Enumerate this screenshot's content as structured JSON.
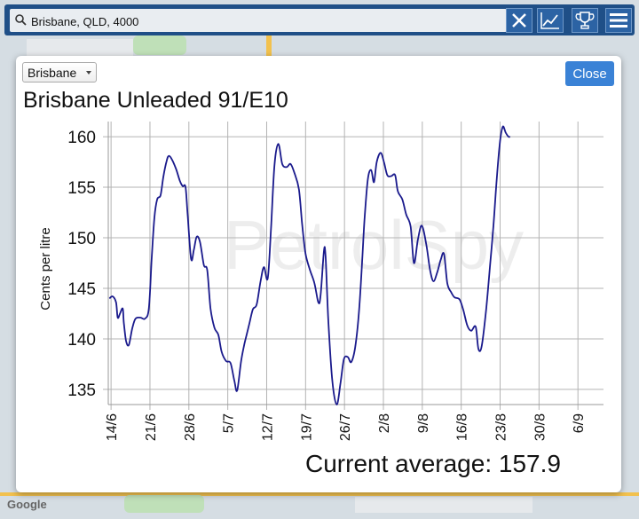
{
  "search": {
    "value": "Brisbane, QLD, 4000"
  },
  "map": {
    "credit": "Google"
  },
  "dialog": {
    "region_selected": "Brisbane",
    "close_label": "Close",
    "title": "Brisbane Unleaded 91/E10",
    "current_average_text": "Current average: 157.9",
    "watermark": "PetrolSpy"
  },
  "colors": {
    "line": "#1a1a8c",
    "topbar": "#1f4f87",
    "close_button": "#3a82d6"
  },
  "chart_data": {
    "type": "line",
    "ylabel": "Cents per litre",
    "ylim": [
      133.5,
      161.5
    ],
    "yticks": [
      135,
      140,
      145,
      150,
      155,
      160
    ],
    "xtick_labels": [
      "14/6",
      "21/6",
      "28/6",
      "5/7",
      "12/7",
      "19/7",
      "26/7",
      "2/8",
      "9/8",
      "16/8",
      "23/8",
      "30/8",
      "6/9"
    ],
    "xtick_day_index": [
      0,
      7,
      14,
      21,
      28,
      35,
      42,
      49,
      56,
      63,
      70,
      77,
      84
    ],
    "x_range_days": [
      -0.5,
      88.6
    ],
    "grid": true,
    "series": [
      {
        "points": [
          [
            -0.3,
            144.0
          ],
          [
            0.3,
            144.2
          ],
          [
            0.9,
            143.6
          ],
          [
            1.2,
            142.1
          ],
          [
            1.6,
            142.5
          ],
          [
            2.1,
            143.0
          ],
          [
            2.3,
            141.6
          ],
          [
            2.7,
            139.8
          ],
          [
            3.2,
            139.4
          ],
          [
            3.8,
            141.0
          ],
          [
            4.4,
            142.0
          ],
          [
            5.3,
            142.1
          ],
          [
            6.1,
            142.0
          ],
          [
            6.8,
            143.0
          ],
          [
            7.3,
            147.8
          ],
          [
            7.8,
            152.0
          ],
          [
            8.3,
            153.8
          ],
          [
            8.9,
            154.2
          ],
          [
            9.4,
            156.0
          ],
          [
            10.0,
            157.6
          ],
          [
            10.4,
            158.1
          ],
          [
            11.0,
            157.7
          ],
          [
            11.7,
            156.8
          ],
          [
            12.4,
            155.6
          ],
          [
            12.9,
            155.1
          ],
          [
            13.4,
            155.0
          ],
          [
            13.8,
            152.1
          ],
          [
            14.4,
            147.9
          ],
          [
            14.9,
            148.8
          ],
          [
            15.4,
            150.1
          ],
          [
            16.0,
            149.6
          ],
          [
            16.7,
            147.3
          ],
          [
            17.3,
            146.8
          ],
          [
            17.9,
            143.0
          ],
          [
            18.6,
            141.1
          ],
          [
            19.3,
            140.4
          ],
          [
            19.9,
            138.7
          ],
          [
            20.7,
            137.8
          ],
          [
            21.5,
            137.6
          ],
          [
            22.2,
            135.8
          ],
          [
            22.7,
            134.9
          ],
          [
            23.4,
            137.8
          ],
          [
            24.0,
            139.5
          ],
          [
            24.8,
            141.3
          ],
          [
            25.5,
            142.9
          ],
          [
            26.2,
            143.4
          ],
          [
            26.9,
            145.7
          ],
          [
            27.5,
            147.1
          ],
          [
            28.2,
            146.0
          ],
          [
            28.8,
            151.1
          ],
          [
            29.4,
            157.2
          ],
          [
            30.1,
            159.3
          ],
          [
            30.8,
            157.3
          ],
          [
            31.6,
            157.0
          ],
          [
            32.3,
            157.3
          ],
          [
            33.0,
            156.4
          ],
          [
            33.8,
            154.8
          ],
          [
            34.4,
            151.2
          ],
          [
            35.0,
            148.4
          ],
          [
            35.8,
            146.8
          ],
          [
            36.6,
            145.5
          ],
          [
            37.3,
            143.6
          ],
          [
            37.7,
            144.3
          ],
          [
            38.3,
            148.7
          ],
          [
            38.6,
            148.1
          ],
          [
            39.1,
            141.7
          ],
          [
            39.8,
            135.9
          ],
          [
            40.6,
            133.5
          ],
          [
            41.3,
            135.7
          ],
          [
            41.9,
            138.0
          ],
          [
            42.6,
            138.2
          ],
          [
            43.2,
            137.7
          ],
          [
            43.9,
            139.1
          ],
          [
            44.6,
            142.6
          ],
          [
            45.2,
            147.9
          ],
          [
            45.6,
            151.8
          ],
          [
            46.2,
            155.8
          ],
          [
            46.8,
            156.7
          ],
          [
            47.3,
            155.5
          ],
          [
            47.8,
            157.5
          ],
          [
            48.5,
            158.4
          ],
          [
            49.1,
            157.5
          ],
          [
            49.7,
            156.2
          ],
          [
            50.4,
            156.1
          ],
          [
            51.1,
            156.2
          ],
          [
            51.6,
            154.6
          ],
          [
            52.4,
            153.8
          ],
          [
            53.1,
            152.3
          ],
          [
            53.9,
            151.1
          ],
          [
            54.5,
            147.5
          ],
          [
            55.2,
            149.8
          ],
          [
            55.9,
            151.2
          ],
          [
            56.7,
            149.4
          ],
          [
            57.4,
            146.8
          ],
          [
            58.0,
            145.7
          ],
          [
            58.7,
            146.6
          ],
          [
            59.3,
            147.8
          ],
          [
            59.9,
            148.4
          ],
          [
            60.5,
            145.5
          ],
          [
            61.2,
            144.6
          ],
          [
            61.8,
            144.1
          ],
          [
            62.7,
            143.9
          ],
          [
            63.4,
            142.8
          ],
          [
            64.1,
            141.3
          ],
          [
            64.8,
            140.8
          ],
          [
            65.6,
            141.2
          ],
          [
            66.1,
            139.0
          ],
          [
            66.7,
            139.3
          ],
          [
            67.5,
            143.0
          ],
          [
            68.2,
            147.3
          ],
          [
            68.8,
            151.2
          ],
          [
            69.4,
            155.9
          ],
          [
            70.0,
            159.6
          ],
          [
            70.5,
            161.0
          ],
          [
            71.0,
            160.4
          ],
          [
            71.5,
            160.0
          ],
          [
            71.8,
            160.0
          ]
        ]
      }
    ]
  }
}
